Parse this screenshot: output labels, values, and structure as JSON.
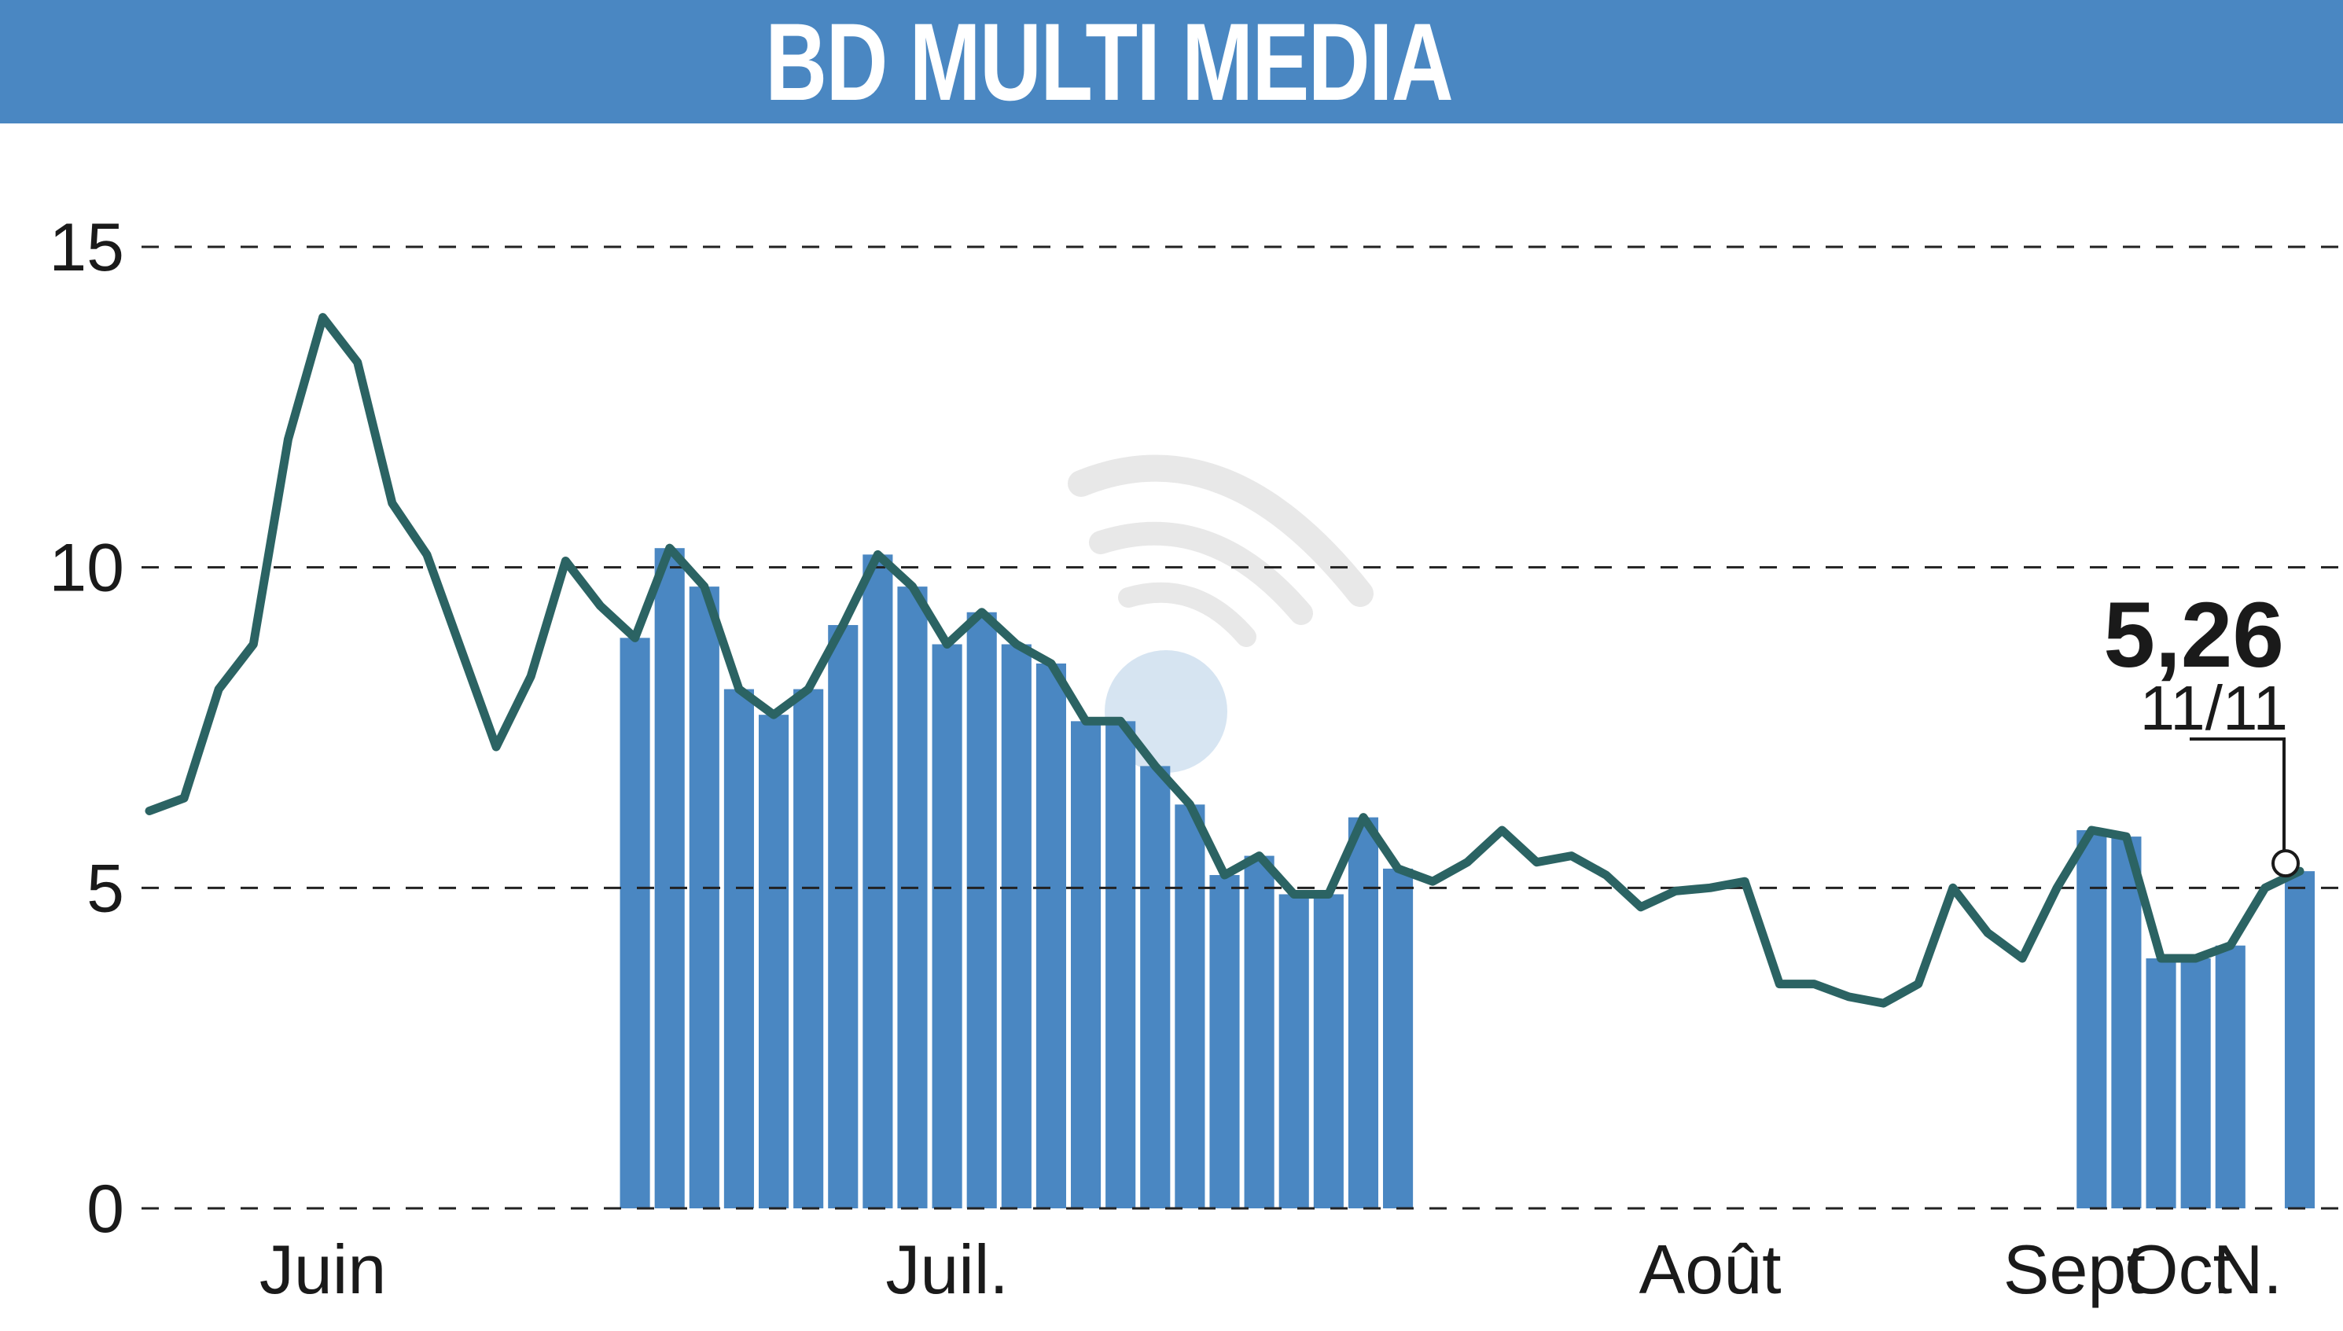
{
  "title": "BD MULTI MEDIA",
  "colors": {
    "header": "#4a87c2",
    "bars": "#4a87c2",
    "line": "#2b6363",
    "grid": "#222222"
  },
  "chart_data": {
    "type": "line",
    "title": "BD MULTI MEDIA",
    "ylim": [
      0,
      15
    ],
    "yticks": [
      0,
      5,
      10,
      15
    ],
    "grid": true,
    "x_labels": [
      {
        "label": "Juin",
        "index": 5
      },
      {
        "label": "Juil.",
        "index": 23
      },
      {
        "label": "Août",
        "index": 45
      },
      {
        "label": "Sept",
        "index": 55.5
      },
      {
        "label": "Oct",
        "index": 58.5
      },
      {
        "label": "N.",
        "index": 60.5
      }
    ],
    "series": [
      {
        "values": [
          6.2,
          6.4,
          8.1,
          8.8,
          12.0,
          13.9,
          13.2,
          11.0,
          10.2,
          8.7,
          7.2,
          8.3,
          10.1,
          9.4,
          8.9,
          10.3,
          9.7,
          8.1,
          7.7,
          8.1,
          9.1,
          10.2,
          9.7,
          8.8,
          9.3,
          8.8,
          8.5,
          7.6,
          7.6,
          6.9,
          6.3,
          5.2,
          5.5,
          4.9,
          4.9,
          6.1,
          5.3,
          5.1,
          5.4,
          5.9,
          5.4,
          5.5,
          5.2,
          4.7,
          4.95,
          5.0,
          5.1,
          3.5,
          3.5,
          3.3,
          3.2,
          3.5,
          5.0,
          4.3,
          3.9,
          5.0,
          5.9,
          5.8,
          3.9,
          3.9,
          4.1,
          5.0,
          5.26
        ]
      }
    ],
    "shaded_ranges": [
      [
        14,
        36
      ],
      [
        56,
        60
      ],
      [
        62,
        62
      ]
    ],
    "last_value": "5,26",
    "last_date": "11/11"
  }
}
